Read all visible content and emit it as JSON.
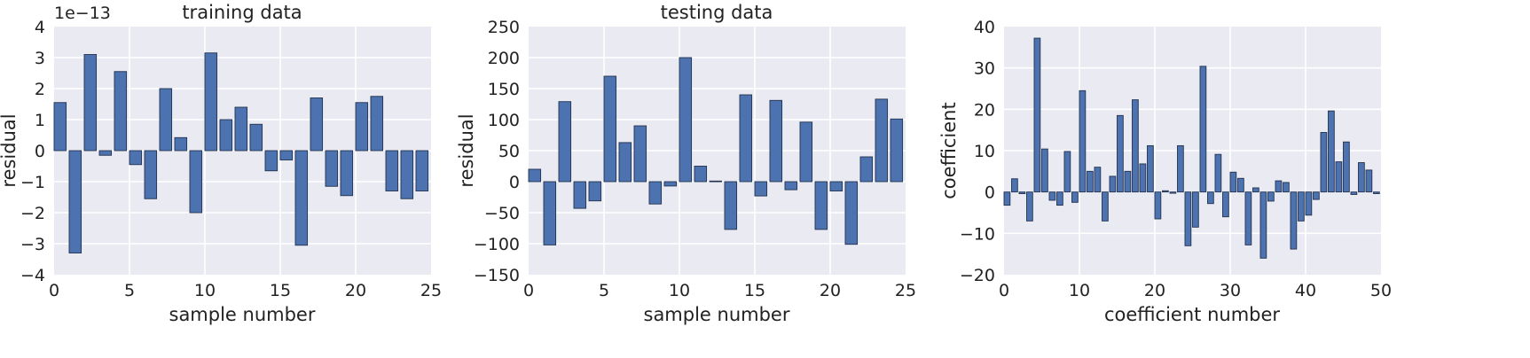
{
  "colors": {
    "bar_fill": "#4c72b0",
    "bar_edge": "#23324f",
    "plot_background": "#eaeaf2",
    "grid": "#ffffff",
    "figure_background": "#ffffff"
  },
  "chart_data": [
    {
      "type": "bar",
      "title": "training data",
      "xlabel": "sample number",
      "ylabel": "residual",
      "scale_note": "1e−13",
      "xlim": [
        0,
        25
      ],
      "ylim": [
        -4,
        4
      ],
      "xticks": [
        0,
        5,
        10,
        15,
        20,
        25
      ],
      "yticks": [
        -4,
        -3,
        -2,
        -1,
        0,
        1,
        2,
        3,
        4
      ],
      "bar_width": 0.8,
      "grid": true,
      "x": [
        0,
        1,
        2,
        3,
        4,
        5,
        6,
        7,
        8,
        9,
        10,
        11,
        12,
        13,
        14,
        15,
        16,
        17,
        18,
        19,
        20,
        21,
        22,
        23,
        24
      ],
      "values": [
        1.55,
        -3.3,
        3.1,
        -0.15,
        2.55,
        -0.45,
        -1.55,
        2.0,
        0.42,
        -2.0,
        3.15,
        1.0,
        1.4,
        0.85,
        -0.65,
        -0.3,
        -3.05,
        1.7,
        -1.15,
        -1.45,
        1.55,
        1.75,
        -1.3,
        -1.55,
        -1.3
      ]
    },
    {
      "type": "bar",
      "title": "testing data",
      "xlabel": "sample number",
      "ylabel": "residual",
      "xlim": [
        0,
        25
      ],
      "ylim": [
        -150,
        250
      ],
      "xticks": [
        0,
        5,
        10,
        15,
        20,
        25
      ],
      "yticks": [
        -150,
        -100,
        -50,
        0,
        50,
        100,
        150,
        200,
        250
      ],
      "bar_width": 0.8,
      "grid": true,
      "x": [
        0,
        1,
        2,
        3,
        4,
        5,
        6,
        7,
        8,
        9,
        10,
        11,
        12,
        13,
        14,
        15,
        16,
        17,
        18,
        19,
        20,
        21,
        22,
        23,
        24
      ],
      "values": [
        20,
        -102,
        129,
        -43,
        -31,
        170,
        63,
        90,
        -36,
        -7,
        200,
        25,
        1,
        -77,
        140,
        -23,
        131,
        -13,
        96,
        -77,
        -15,
        -101,
        40,
        133,
        101
      ]
    },
    {
      "type": "bar",
      "title": "",
      "xlabel": "coefficient number",
      "ylabel": "coefficient",
      "xlim": [
        0,
        50
      ],
      "ylim": [
        -20,
        40
      ],
      "xticks": [
        0,
        10,
        20,
        30,
        40,
        50
      ],
      "yticks": [
        -20,
        -10,
        0,
        10,
        20,
        30,
        40
      ],
      "bar_width": 0.8,
      "grid": true,
      "x": [
        0,
        1,
        2,
        3,
        4,
        5,
        6,
        7,
        8,
        9,
        10,
        11,
        12,
        13,
        14,
        15,
        16,
        17,
        18,
        19,
        20,
        21,
        22,
        23,
        24,
        25,
        26,
        27,
        28,
        29,
        30,
        31,
        32,
        33,
        34,
        35,
        36,
        37,
        38,
        39,
        40,
        41,
        42,
        43,
        44,
        45,
        46,
        47,
        48,
        49
      ],
      "values": [
        -3.2,
        3.2,
        -0.4,
        -7.0,
        37.2,
        10.4,
        -2.0,
        -3.2,
        9.8,
        -2.5,
        24.5,
        5.0,
        6.0,
        -7.0,
        3.8,
        18.5,
        5.0,
        22.3,
        6.8,
        11.2,
        -6.5,
        0.3,
        -0.3,
        11.2,
        -13.0,
        -8.5,
        30.4,
        -2.8,
        9.1,
        -6.0,
        4.8,
        3.3,
        -12.8,
        1.0,
        -16.0,
        -2.2,
        2.7,
        2.3,
        -13.8,
        -7.0,
        -5.6,
        -1.8,
        14.4,
        19.6,
        7.3,
        12.1,
        -0.6,
        7.1,
        5.3,
        -0.4
      ]
    }
  ]
}
